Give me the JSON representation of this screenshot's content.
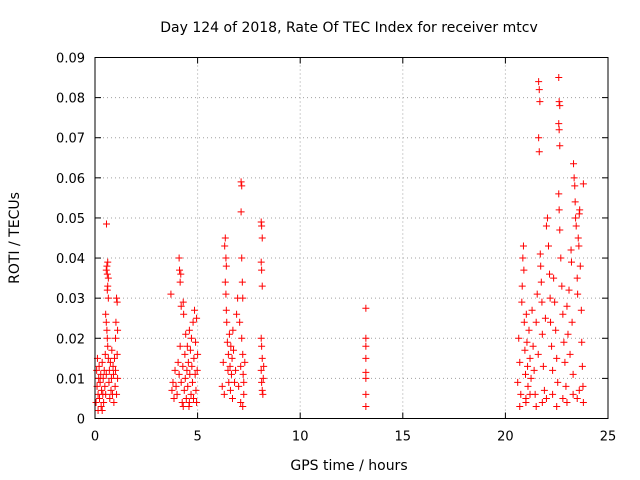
{
  "chart_data": {
    "type": "scatter",
    "title": "Day 124 of 2018, Rate Of TEC Index for receiver mtcv",
    "xlabel": "GPS time / hours",
    "ylabel": "ROTI / TECUs",
    "xlim": [
      0,
      25
    ],
    "ylim": [
      0,
      0.09
    ],
    "xticks": [
      0,
      5,
      10,
      15,
      20,
      25
    ],
    "xtick_labels": [
      "0",
      "5",
      "10",
      "15",
      "20",
      "25"
    ],
    "yticks": [
      0,
      0.01,
      0.02,
      0.03,
      0.04,
      0.05,
      0.06,
      0.07,
      0.08,
      0.09
    ],
    "ytick_labels": [
      "0",
      "0.01",
      "0.02",
      "0.03",
      "0.04",
      "0.05",
      "0.06",
      "0.07",
      "0.08",
      "0.09"
    ],
    "grid": true,
    "marker": "+",
    "color": "#ff0000",
    "series": [
      {
        "name": "mtcv",
        "points": [
          [
            0.05,
            0.004
          ],
          [
            0.08,
            0.012
          ],
          [
            0.1,
            0.008
          ],
          [
            0.12,
            0.015
          ],
          [
            0.15,
            0.006
          ],
          [
            0.18,
            0.01
          ],
          [
            0.2,
            0.013
          ],
          [
            0.22,
            0.005
          ],
          [
            0.25,
            0.009
          ],
          [
            0.28,
            0.011
          ],
          [
            0.3,
            0.003
          ],
          [
            0.32,
            0.007
          ],
          [
            0.35,
            0.014
          ],
          [
            0.38,
            0.006
          ],
          [
            0.4,
            0.01
          ],
          [
            0.42,
            0.004
          ],
          [
            0.45,
            0.012
          ],
          [
            0.48,
            0.008
          ],
          [
            0.5,
            0.016
          ],
          [
            0.52,
            0.006
          ],
          [
            0.55,
            0.011
          ],
          [
            0.55,
            0.037
          ],
          [
            0.58,
            0.038
          ],
          [
            0.6,
            0.036
          ],
          [
            0.62,
            0.039
          ],
          [
            0.65,
            0.035
          ],
          [
            0.52,
            0.026
          ],
          [
            0.55,
            0.024
          ],
          [
            0.58,
            0.022
          ],
          [
            0.6,
            0.032
          ],
          [
            0.62,
            0.033
          ],
          [
            0.65,
            0.03
          ],
          [
            0.56,
            0.0485
          ],
          [
            0.6,
            0.02
          ],
          [
            0.62,
            0.018
          ],
          [
            0.65,
            0.015
          ],
          [
            0.68,
            0.009
          ],
          [
            0.7,
            0.012
          ],
          [
            0.72,
            0.005
          ],
          [
            0.75,
            0.014
          ],
          [
            0.78,
            0.007
          ],
          [
            0.8,
            0.01
          ],
          [
            0.82,
            0.017
          ],
          [
            0.85,
            0.006
          ],
          [
            0.88,
            0.013
          ],
          [
            0.9,
            0.011
          ],
          [
            0.92,
            0.004
          ],
          [
            0.95,
            0.015
          ],
          [
            0.98,
            0.008
          ],
          [
            1.0,
            0.02
          ],
          [
            1.02,
            0.024
          ],
          [
            1.05,
            0.03
          ],
          [
            1.08,
            0.029
          ],
          [
            1.1,
            0.022
          ],
          [
            1.0,
            0.012
          ],
          [
            1.05,
            0.006
          ],
          [
            1.08,
            0.016
          ],
          [
            1.1,
            0.01
          ],
          [
            0.15,
            0.002
          ],
          [
            0.35,
            0.002
          ],
          [
            3.7,
            0.031
          ],
          [
            3.75,
            0.007
          ],
          [
            3.8,
            0.009
          ],
          [
            3.85,
            0.005
          ],
          [
            3.9,
            0.012
          ],
          [
            3.95,
            0.008
          ],
          [
            4.0,
            0.006
          ],
          [
            4.05,
            0.014
          ],
          [
            4.1,
            0.04
          ],
          [
            4.12,
            0.037
          ],
          [
            4.15,
            0.034
          ],
          [
            4.18,
            0.036
          ],
          [
            4.2,
            0.028
          ],
          [
            4.1,
            0.011
          ],
          [
            4.15,
            0.018
          ],
          [
            4.2,
            0.009
          ],
          [
            4.25,
            0.004
          ],
          [
            4.28,
            0.013
          ],
          [
            4.3,
            0.029
          ],
          [
            4.32,
            0.026
          ],
          [
            4.35,
            0.007
          ],
          [
            4.38,
            0.016
          ],
          [
            4.4,
            0.01
          ],
          [
            4.42,
            0.021
          ],
          [
            4.45,
            0.005
          ],
          [
            4.48,
            0.012
          ],
          [
            4.5,
            0.018
          ],
          [
            4.52,
            0.008
          ],
          [
            4.55,
            0.014
          ],
          [
            4.58,
            0.003
          ],
          [
            4.6,
            0.022
          ],
          [
            4.62,
            0.011
          ],
          [
            4.65,
            0.017
          ],
          [
            4.68,
            0.006
          ],
          [
            4.7,
            0.02
          ],
          [
            4.72,
            0.013
          ],
          [
            4.75,
            0.009
          ],
          [
            4.78,
            0.024
          ],
          [
            4.8,
            0.005
          ],
          [
            4.82,
            0.015
          ],
          [
            4.85,
            0.027
          ],
          [
            4.88,
            0.011
          ],
          [
            4.9,
            0.019
          ],
          [
            4.92,
            0.007
          ],
          [
            4.95,
            0.025
          ],
          [
            4.98,
            0.012
          ],
          [
            5.0,
            0.016
          ],
          [
            4.95,
            0.004
          ],
          [
            4.6,
            0.004
          ],
          [
            4.3,
            0.003
          ],
          [
            6.2,
            0.008
          ],
          [
            6.25,
            0.014
          ],
          [
            6.3,
            0.006
          ],
          [
            6.32,
            0.043
          ],
          [
            6.35,
            0.045
          ],
          [
            6.38,
            0.04
          ],
          [
            6.4,
            0.038
          ],
          [
            6.35,
            0.034
          ],
          [
            6.38,
            0.031
          ],
          [
            6.4,
            0.027
          ],
          [
            6.42,
            0.024
          ],
          [
            6.45,
            0.019
          ],
          [
            6.48,
            0.012
          ],
          [
            6.5,
            0.016
          ],
          [
            6.52,
            0.009
          ],
          [
            6.55,
            0.021
          ],
          [
            6.58,
            0.013
          ],
          [
            6.6,
            0.007
          ],
          [
            6.62,
            0.018
          ],
          [
            6.65,
            0.011
          ],
          [
            6.68,
            0.015
          ],
          [
            6.7,
            0.005
          ],
          [
            6.72,
            0.022
          ],
          [
            6.75,
            0.017
          ],
          [
            6.8,
            0.009
          ],
          [
            6.85,
            0.012
          ],
          [
            6.9,
            0.026
          ],
          [
            6.95,
            0.03
          ],
          [
            7.0,
            0.008
          ],
          [
            7.05,
            0.024
          ],
          [
            7.1,
            0.013
          ],
          [
            7.12,
            0.059
          ],
          [
            7.15,
            0.058
          ],
          [
            7.12,
            0.0515
          ],
          [
            7.15,
            0.04
          ],
          [
            7.18,
            0.034
          ],
          [
            7.2,
            0.03
          ],
          [
            7.15,
            0.02
          ],
          [
            7.2,
            0.016
          ],
          [
            7.22,
            0.011
          ],
          [
            7.25,
            0.006
          ],
          [
            7.2,
            0.003
          ],
          [
            7.1,
            0.004
          ],
          [
            7.25,
            0.009
          ],
          [
            7.3,
            0.014
          ],
          [
            8.1,
            0.049
          ],
          [
            8.12,
            0.048
          ],
          [
            8.15,
            0.045
          ],
          [
            8.1,
            0.039
          ],
          [
            8.12,
            0.037
          ],
          [
            8.15,
            0.033
          ],
          [
            8.1,
            0.02
          ],
          [
            8.12,
            0.018
          ],
          [
            8.15,
            0.015
          ],
          [
            8.1,
            0.012
          ],
          [
            8.12,
            0.009
          ],
          [
            8.15,
            0.007
          ],
          [
            8.18,
            0.006
          ],
          [
            8.2,
            0.01
          ],
          [
            8.22,
            0.013
          ],
          [
            13.2,
            0.0275
          ],
          [
            13.2,
            0.02
          ],
          [
            13.2,
            0.018
          ],
          [
            13.2,
            0.015
          ],
          [
            13.2,
            0.0115
          ],
          [
            13.2,
            0.01
          ],
          [
            13.2,
            0.006
          ],
          [
            13.2,
            0.003
          ],
          [
            20.6,
            0.009
          ],
          [
            20.65,
            0.02
          ],
          [
            20.7,
            0.014
          ],
          [
            20.75,
            0.006
          ],
          [
            20.8,
            0.029
          ],
          [
            20.82,
            0.033
          ],
          [
            20.85,
            0.04
          ],
          [
            20.88,
            0.043
          ],
          [
            20.9,
            0.037
          ],
          [
            20.92,
            0.024
          ],
          [
            20.95,
            0.017
          ],
          [
            20.98,
            0.011
          ],
          [
            21.0,
            0.005
          ],
          [
            21.02,
            0.026
          ],
          [
            21.05,
            0.019
          ],
          [
            21.08,
            0.013
          ],
          [
            21.1,
            0.008
          ],
          [
            21.15,
            0.022
          ],
          [
            21.2,
            0.015
          ],
          [
            21.25,
            0.01
          ],
          [
            21.3,
            0.027
          ],
          [
            21.35,
            0.018
          ],
          [
            21.4,
            0.012
          ],
          [
            21.45,
            0.006
          ],
          [
            21.5,
            0.024
          ],
          [
            21.55,
            0.031
          ],
          [
            21.6,
            0.016
          ],
          [
            21.62,
            0.084
          ],
          [
            21.65,
            0.082
          ],
          [
            21.68,
            0.079
          ],
          [
            21.62,
            0.07
          ],
          [
            21.65,
            0.0665
          ],
          [
            21.7,
            0.041
          ],
          [
            21.72,
            0.038
          ],
          [
            21.75,
            0.034
          ],
          [
            21.78,
            0.029
          ],
          [
            21.8,
            0.021
          ],
          [
            21.85,
            0.013
          ],
          [
            21.9,
            0.007
          ],
          [
            21.95,
            0.025
          ],
          [
            22.0,
            0.048
          ],
          [
            22.05,
            0.05
          ],
          [
            22.1,
            0.043
          ],
          [
            22.15,
            0.036
          ],
          [
            22.18,
            0.03
          ],
          [
            22.2,
            0.024
          ],
          [
            22.25,
            0.018
          ],
          [
            22.3,
            0.012
          ],
          [
            22.35,
            0.035
          ],
          [
            22.4,
            0.029
          ],
          [
            22.45,
            0.022
          ],
          [
            22.5,
            0.015
          ],
          [
            22.55,
            0.009
          ],
          [
            22.6,
            0.085
          ],
          [
            22.62,
            0.079
          ],
          [
            22.65,
            0.078
          ],
          [
            22.6,
            0.0735
          ],
          [
            22.62,
            0.072
          ],
          [
            22.65,
            0.068
          ],
          [
            22.6,
            0.056
          ],
          [
            22.62,
            0.052
          ],
          [
            22.65,
            0.047
          ],
          [
            22.7,
            0.04
          ],
          [
            22.75,
            0.033
          ],
          [
            22.8,
            0.026
          ],
          [
            22.85,
            0.019
          ],
          [
            22.9,
            0.014
          ],
          [
            22.95,
            0.008
          ],
          [
            23.0,
            0.028
          ],
          [
            23.05,
            0.021
          ],
          [
            23.1,
            0.032
          ],
          [
            23.15,
            0.016
          ],
          [
            23.2,
            0.042
          ],
          [
            23.22,
            0.039
          ],
          [
            23.25,
            0.024
          ],
          [
            23.3,
            0.011
          ],
          [
            23.32,
            0.0635
          ],
          [
            23.35,
            0.06
          ],
          [
            23.38,
            0.058
          ],
          [
            23.4,
            0.054
          ],
          [
            23.42,
            0.05
          ],
          [
            23.45,
            0.048
          ],
          [
            23.5,
            0.035
          ],
          [
            23.52,
            0.031
          ],
          [
            23.55,
            0.045
          ],
          [
            23.58,
            0.043
          ],
          [
            23.6,
            0.051
          ],
          [
            23.62,
            0.052
          ],
          [
            23.65,
            0.038
          ],
          [
            23.7,
            0.027
          ],
          [
            23.72,
            0.019
          ],
          [
            23.75,
            0.013
          ],
          [
            23.78,
            0.008
          ],
          [
            23.8,
            0.0585
          ],
          [
            23.8,
            0.004
          ],
          [
            23.5,
            0.005
          ],
          [
            23.0,
            0.004
          ],
          [
            22.5,
            0.003
          ],
          [
            22.0,
            0.005
          ],
          [
            21.5,
            0.003
          ],
          [
            21.0,
            0.004
          ],
          [
            20.7,
            0.003
          ],
          [
            21.2,
            0.006
          ],
          [
            21.8,
            0.004
          ],
          [
            22.3,
            0.006
          ],
          [
            22.8,
            0.005
          ],
          [
            23.3,
            0.006
          ],
          [
            23.6,
            0.007
          ]
        ]
      }
    ]
  }
}
